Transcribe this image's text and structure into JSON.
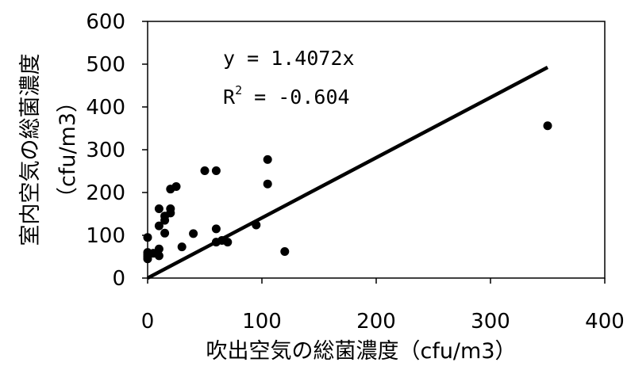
{
  "chart_data": {
    "type": "scatter",
    "xlabel": "吹出空気の総菌濃度（cfu/m3）",
    "ylabel_line1": "室内空気の総菌濃度",
    "ylabel_line2": "（cfu/m3）",
    "xlim": [
      0,
      400
    ],
    "ylim": [
      0,
      600
    ],
    "x_ticks": [
      0,
      100,
      200,
      300,
      400
    ],
    "y_ticks": [
      0,
      100,
      200,
      300,
      400,
      500,
      600
    ],
    "x_tick_labels": [
      "0",
      "100",
      "200",
      "300",
      "400"
    ],
    "y_tick_labels": [
      "0",
      "100",
      "200",
      "300",
      "400",
      "500",
      "600"
    ],
    "grid": false,
    "points": [
      {
        "x": 0,
        "y": 95
      },
      {
        "x": 0,
        "y": 60
      },
      {
        "x": 0,
        "y": 55
      },
      {
        "x": 0,
        "y": 50
      },
      {
        "x": 0,
        "y": 45
      },
      {
        "x": 5,
        "y": 58
      },
      {
        "x": 10,
        "y": 162
      },
      {
        "x": 10,
        "y": 122
      },
      {
        "x": 10,
        "y": 68
      },
      {
        "x": 10,
        "y": 52
      },
      {
        "x": 15,
        "y": 145
      },
      {
        "x": 15,
        "y": 135
      },
      {
        "x": 15,
        "y": 105
      },
      {
        "x": 20,
        "y": 208
      },
      {
        "x": 20,
        "y": 162
      },
      {
        "x": 20,
        "y": 152
      },
      {
        "x": 25,
        "y": 214
      },
      {
        "x": 30,
        "y": 73
      },
      {
        "x": 40,
        "y": 104
      },
      {
        "x": 50,
        "y": 251
      },
      {
        "x": 60,
        "y": 251
      },
      {
        "x": 60,
        "y": 115
      },
      {
        "x": 60,
        "y": 84
      },
      {
        "x": 65,
        "y": 88
      },
      {
        "x": 70,
        "y": 84
      },
      {
        "x": 95,
        "y": 124
      },
      {
        "x": 105,
        "y": 277
      },
      {
        "x": 105,
        "y": 220
      },
      {
        "x": 120,
        "y": 62
      },
      {
        "x": 350,
        "y": 356
      }
    ],
    "trendline": {
      "slope": 1.4072,
      "intercept": 0,
      "x_range": [
        0,
        350
      ]
    },
    "annotations": {
      "equation": "y = 1.4072x",
      "r2_base": "R",
      "r2_sup": "2",
      "r2_value": " = -0.604"
    }
  }
}
